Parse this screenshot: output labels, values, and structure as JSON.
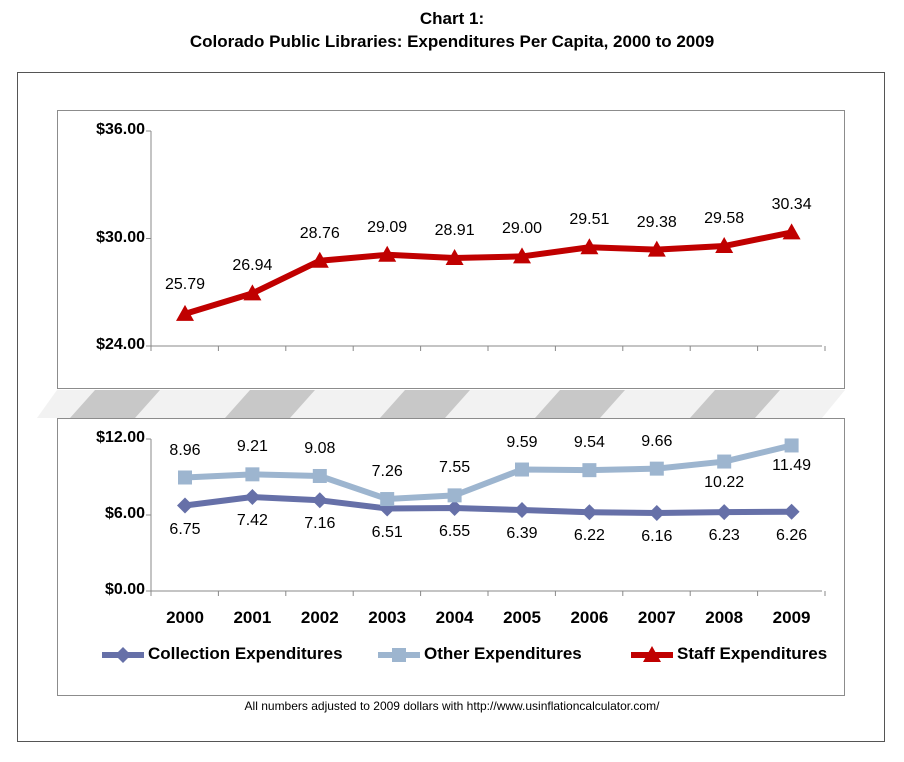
{
  "title_line1": "Chart 1:",
  "title_line2": "Colorado Public Libraries: Expenditures Per Capita, 2000 to 2009",
  "footnote": "All numbers adjusted to 2009 dollars with http://www.usinflationcalculator.com/",
  "chart_data": [
    {
      "type": "line",
      "panel": "top",
      "ylim": [
        24,
        36
      ],
      "yticks": [
        "$36.00",
        "$30.00",
        "$24.00"
      ],
      "ytick_values": [
        36,
        30,
        24
      ],
      "x": [
        "2000",
        "2001",
        "2002",
        "2003",
        "2004",
        "2005",
        "2006",
        "2007",
        "2008",
        "2009"
      ],
      "series": [
        {
          "name": "Staff Expenditures",
          "color": "#c00000",
          "marker": "triangle",
          "values": [
            25.79,
            26.94,
            28.76,
            29.09,
            28.91,
            29.0,
            29.51,
            29.38,
            29.58,
            30.34
          ],
          "labels": [
            "25.79",
            "26.94",
            "28.76",
            "29.09",
            "28.91",
            "29.00",
            "29.51",
            "29.38",
            "29.58",
            "30.34"
          ]
        }
      ]
    },
    {
      "type": "line",
      "panel": "bottom",
      "ylim": [
        0,
        12
      ],
      "yticks": [
        "$12.00",
        "$6.00",
        "$0.00"
      ],
      "ytick_values": [
        12,
        6,
        0
      ],
      "x": [
        "2000",
        "2001",
        "2002",
        "2003",
        "2004",
        "2005",
        "2006",
        "2007",
        "2008",
        "2009"
      ],
      "series": [
        {
          "name": "Collection Expenditures",
          "color": "#6670a8",
          "marker": "diamond",
          "values": [
            6.75,
            7.42,
            7.16,
            6.51,
            6.55,
            6.39,
            6.22,
            6.16,
            6.23,
            6.26
          ],
          "labels": [
            "6.75",
            "7.42",
            "7.16",
            "6.51",
            "6.55",
            "6.39",
            "6.22",
            "6.16",
            "6.23",
            "6.26"
          ]
        },
        {
          "name": "Other Expenditures",
          "color": "#9db5cf",
          "marker": "square",
          "values": [
            8.96,
            9.21,
            9.08,
            7.26,
            7.55,
            9.59,
            9.54,
            9.66,
            10.22,
            11.49
          ],
          "labels": [
            "8.96",
            "9.21",
            "9.08",
            "7.26",
            "7.55",
            "9.59",
            "9.54",
            "9.66",
            "10.22",
            "11.49"
          ]
        }
      ]
    }
  ],
  "legend": [
    {
      "label": "Collection Expenditures",
      "color": "#6670a8",
      "marker": "diamond"
    },
    {
      "label": "Other Expenditures",
      "color": "#9db5cf",
      "marker": "square"
    },
    {
      "label": "Staff Expenditures",
      "color": "#c00000",
      "marker": "triangle"
    }
  ]
}
